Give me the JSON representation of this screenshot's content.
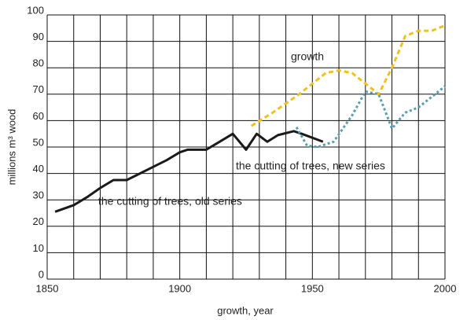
{
  "chart_data": {
    "type": "line",
    "xlabel": "growth, year",
    "ylabel": "millions m³ wood",
    "xlim": [
      1850,
      2000
    ],
    "xticks": [
      1850,
      1900,
      1950,
      2000
    ],
    "x_minor_ticks": [
      1860,
      1870,
      1880,
      1890,
      1910,
      1920,
      1930,
      1940,
      1960,
      1970,
      1980,
      1990
    ],
    "ylim": [
      0,
      100
    ],
    "yticks": [
      0,
      10,
      20,
      30,
      40,
      50,
      60,
      70,
      80,
      90,
      100
    ],
    "grid": true,
    "series": [
      {
        "name": "the cutting of trees, old series",
        "color": "#1a1a1a",
        "style": "solid",
        "x": [
          1853,
          1860,
          1865,
          1870,
          1875,
          1880,
          1885,
          1890,
          1895,
          1900,
          1903,
          1910,
          1915,
          1920,
          1925,
          1929,
          1933,
          1937,
          1943,
          1946,
          1954
        ],
        "values": [
          25.5,
          28,
          31,
          34.5,
          37.5,
          37.5,
          40,
          42.5,
          45,
          48,
          49,
          49,
          52,
          55,
          49,
          55,
          52,
          54.5,
          56,
          55,
          52
        ]
      },
      {
        "name": "growth",
        "color": "#f2c01e",
        "style": "dashed",
        "x": [
          1927,
          1935,
          1945,
          1955,
          1960,
          1965,
          1975,
          1980,
          1985,
          1990,
          1995,
          2000
        ],
        "values": [
          58,
          63,
          70,
          78,
          79,
          78,
          70,
          80,
          92,
          94,
          94,
          96
        ]
      },
      {
        "name": "the cutting of trees, new series",
        "color": "#5a9db3",
        "style": "dotted",
        "x": [
          1944,
          1948,
          1952,
          1958,
          1965,
          1970,
          1975,
          1980,
          1985,
          1990,
          1995,
          2000
        ],
        "values": [
          57.5,
          50.5,
          50,
          52,
          62,
          71,
          70,
          57,
          63,
          65,
          69,
          73
        ]
      }
    ]
  }
}
